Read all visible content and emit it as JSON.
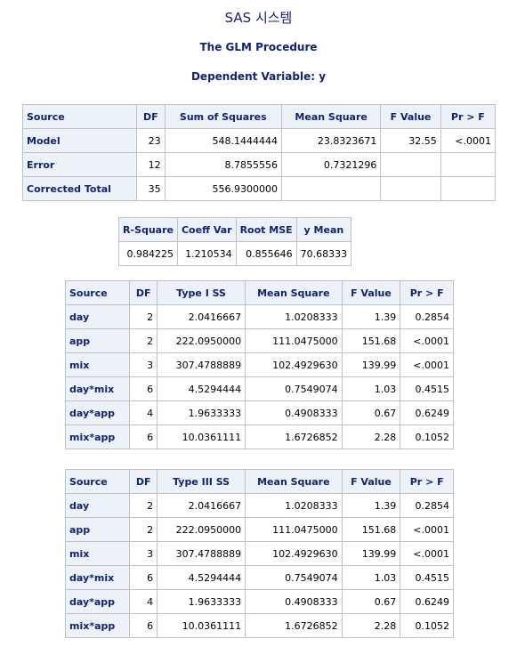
{
  "titles": {
    "main": "SAS 시스템",
    "procedure": "The GLM Procedure",
    "dependent": "Dependent Variable: y"
  },
  "anova": {
    "headers": [
      "Source",
      "DF",
      "Sum of Squares",
      "Mean Square",
      "F Value",
      "Pr > F"
    ],
    "rows": [
      [
        "Model",
        "23",
        "548.1444444",
        "23.8323671",
        "32.55",
        "<.0001"
      ],
      [
        "Error",
        "12",
        "8.7855556",
        "0.7321296",
        "",
        ""
      ],
      [
        "Corrected Total",
        "35",
        "556.9300000",
        "",
        "",
        ""
      ]
    ]
  },
  "fit": {
    "headers": [
      "R-Square",
      "Coeff Var",
      "Root MSE",
      "y Mean"
    ],
    "values": [
      "0.984225",
      "1.210534",
      "0.855646",
      "70.68333"
    ]
  },
  "type1": {
    "headers": [
      "Source",
      "DF",
      "Type I SS",
      "Mean Square",
      "F Value",
      "Pr > F"
    ],
    "rows": [
      [
        "day",
        "2",
        "2.0416667",
        "1.0208333",
        "1.39",
        "0.2854"
      ],
      [
        "app",
        "2",
        "222.0950000",
        "111.0475000",
        "151.68",
        "<.0001"
      ],
      [
        "mix",
        "3",
        "307.4788889",
        "102.4929630",
        "139.99",
        "<.0001"
      ],
      [
        "day*mix",
        "6",
        "4.5294444",
        "0.7549074",
        "1.03",
        "0.4515"
      ],
      [
        "day*app",
        "4",
        "1.9633333",
        "0.4908333",
        "0.67",
        "0.6249"
      ],
      [
        "mix*app",
        "6",
        "10.0361111",
        "1.6726852",
        "2.28",
        "0.1052"
      ]
    ]
  },
  "type3": {
    "headers": [
      "Source",
      "DF",
      "Type III SS",
      "Mean Square",
      "F Value",
      "Pr > F"
    ],
    "rows": [
      [
        "day",
        "2",
        "2.0416667",
        "1.0208333",
        "1.39",
        "0.2854"
      ],
      [
        "app",
        "2",
        "222.0950000",
        "111.0475000",
        "151.68",
        "<.0001"
      ],
      [
        "mix",
        "3",
        "307.4788889",
        "102.4929630",
        "139.99",
        "<.0001"
      ],
      [
        "day*mix",
        "6",
        "4.5294444",
        "0.7549074",
        "1.03",
        "0.4515"
      ],
      [
        "day*app",
        "4",
        "1.9633333",
        "0.4908333",
        "0.67",
        "0.6249"
      ],
      [
        "mix*app",
        "6",
        "10.0361111",
        "1.6726852",
        "2.28",
        "0.1052"
      ]
    ]
  }
}
